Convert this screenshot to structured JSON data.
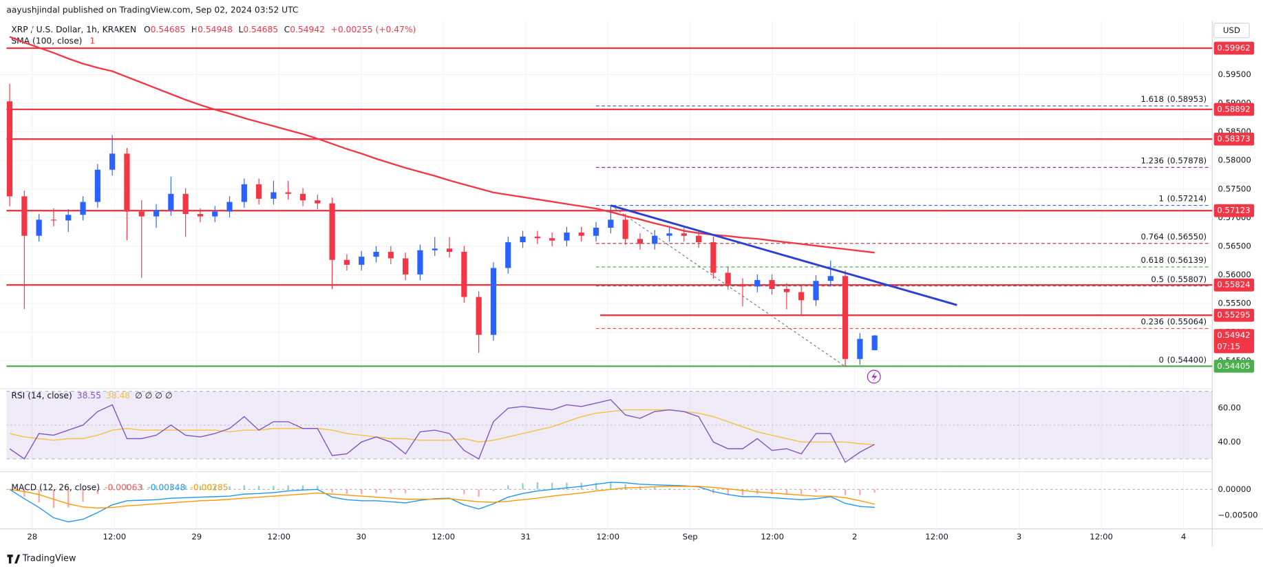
{
  "header": {
    "publisher": "aayushjindal published on TradingView.com, Sep 02, 2024 03:52 UTC",
    "symbol": "XRP / U.S. Dollar, 1h, KRAKEN",
    "ohlc_prefixes": [
      "O",
      "H",
      "L",
      "C"
    ],
    "change": "+0.00255 (+0.47%)",
    "currency": "USD",
    "countdown": "07:15",
    "footer": "TradingView"
  },
  "time_axis": [
    "28",
    "12:00",
    "29",
    "12:00",
    "30",
    "12:00",
    "31",
    "12:00",
    "Sep",
    "12:00",
    "2",
    "12:00",
    "3",
    "12:00",
    "4"
  ],
  "chart_data": [
    {
      "type": "candlestick",
      "up_color": "#2962ff",
      "down_color": "#f23645",
      "open": [
        0.59033,
        0.57373,
        0.56684,
        0.56965,
        0.56951,
        0.5705,
        0.57275,
        0.57838,
        0.58119,
        0.57106,
        0.57022,
        0.57134,
        0.57416,
        0.57064,
        0.57022,
        0.57106,
        0.57275,
        0.57584,
        0.57331,
        0.57444,
        0.57416,
        0.57303,
        0.5725,
        0.56262,
        0.56177,
        0.56318,
        0.56403,
        0.5629,
        0.56009,
        0.56431,
        0.5646,
        0.56403,
        0.55615,
        0.54953,
        0.56121,
        0.56571,
        0.5667,
        0.56642,
        0.566,
        0.5674,
        0.56684,
        0.56825,
        0.56965,
        0.56628,
        0.56543,
        0.56684,
        0.56726,
        0.56684,
        0.56571,
        0.56037,
        0.5584,
        0.55798,
        0.5591,
        0.55755,
        0.55699,
        0.55558,
        0.55896,
        0.5598,
        0.54531,
        0.54685
      ],
      "high": [
        0.59343,
        0.57473,
        0.57065,
        0.57165,
        0.5715,
        0.57375,
        0.57938,
        0.58443,
        0.58219,
        0.57306,
        0.57234,
        0.57716,
        0.57516,
        0.57164,
        0.57206,
        0.57375,
        0.57684,
        0.57684,
        0.57644,
        0.57644,
        0.57516,
        0.57403,
        0.5735,
        0.56362,
        0.56418,
        0.56503,
        0.56503,
        0.5639,
        0.56531,
        0.5666,
        0.5666,
        0.56503,
        0.55715,
        0.56221,
        0.56671,
        0.5677,
        0.5677,
        0.56742,
        0.5684,
        0.5684,
        0.56925,
        0.57214,
        0.57065,
        0.56728,
        0.56784,
        0.56826,
        0.56826,
        0.56784,
        0.56671,
        0.56137,
        0.5594,
        0.5601,
        0.5601,
        0.55855,
        0.55799,
        0.55996,
        0.5625,
        0.5608,
        0.54983,
        0.54948
      ],
      "low": [
        0.572,
        0.55404,
        0.56584,
        0.56851,
        0.56751,
        0.5695,
        0.57175,
        0.57738,
        0.56606,
        0.5595,
        0.56822,
        0.57034,
        0.56664,
        0.56922,
        0.56922,
        0.57006,
        0.57175,
        0.57231,
        0.57231,
        0.57316,
        0.57203,
        0.5715,
        0.5575,
        0.56077,
        0.56077,
        0.56218,
        0.5619,
        0.55909,
        0.55909,
        0.56331,
        0.56303,
        0.55515,
        0.5464,
        0.54853,
        0.56021,
        0.56471,
        0.56542,
        0.565,
        0.565,
        0.56584,
        0.56584,
        0.56725,
        0.56528,
        0.56443,
        0.56443,
        0.56584,
        0.56584,
        0.56471,
        0.55937,
        0.5574,
        0.5545,
        0.55698,
        0.55655,
        0.554,
        0.553,
        0.55458,
        0.55796,
        0.544,
        0.54431,
        0.54685
      ],
      "close": [
        0.57373,
        0.56684,
        0.56965,
        0.56951,
        0.5705,
        0.57275,
        0.57838,
        0.58119,
        0.57106,
        0.57022,
        0.57134,
        0.57416,
        0.57064,
        0.57022,
        0.57106,
        0.57275,
        0.57584,
        0.57331,
        0.57444,
        0.57416,
        0.57303,
        0.5725,
        0.56262,
        0.56177,
        0.56318,
        0.56403,
        0.5629,
        0.56009,
        0.56431,
        0.5646,
        0.56403,
        0.55615,
        0.54953,
        0.56121,
        0.56571,
        0.5667,
        0.56642,
        0.566,
        0.5674,
        0.56684,
        0.56825,
        0.56965,
        0.56628,
        0.56543,
        0.56684,
        0.56726,
        0.56684,
        0.56571,
        0.56037,
        0.5584,
        0.55798,
        0.5591,
        0.55755,
        0.55699,
        0.55558,
        0.55896,
        0.5598,
        0.54531,
        0.54883,
        0.54942
      ],
      "ylim": [
        0.54039,
        0.6044
      ],
      "yticks": [
        {
          "value": 0.545,
          "label": "0.54500"
        },
        {
          "value": 0.55,
          "label": "0.55000"
        },
        {
          "value": 0.555,
          "label": "0.55500"
        },
        {
          "value": 0.56,
          "label": "0.56000"
        },
        {
          "value": 0.565,
          "label": "0.56500"
        },
        {
          "value": 0.57,
          "label": "0.57000"
        },
        {
          "value": 0.575,
          "label": "0.57500"
        },
        {
          "value": 0.58,
          "label": "0.58000"
        },
        {
          "value": 0.585,
          "label": "0.58500"
        },
        {
          "value": 0.59,
          "label": "0.59000"
        },
        {
          "value": 0.595,
          "label": "0.59500"
        }
      ],
      "sma": {
        "label": "SMA (100, close)",
        "flag": "1",
        "color": "#f23645",
        "values": [
          0.6016,
          0.6006,
          0.5997,
          0.5988,
          0.5978,
          0.5969,
          0.5962,
          0.5956,
          0.5946,
          0.5936,
          0.5926,
          0.5916,
          0.5906,
          0.5897,
          0.5889,
          0.5882,
          0.5874,
          0.5867,
          0.586,
          0.5853,
          0.5846,
          0.5838,
          0.5829,
          0.582,
          0.5812,
          0.5803,
          0.5795,
          0.5787,
          0.578,
          0.5773,
          0.5765,
          0.5758,
          0.5751,
          0.5744,
          0.574,
          0.5736,
          0.5732,
          0.5728,
          0.5724,
          0.572,
          0.5716,
          0.571,
          0.5703,
          0.5697,
          0.569,
          0.5684,
          0.5677,
          0.5673,
          0.567,
          0.5668,
          0.5665,
          0.5663,
          0.566,
          0.5657,
          0.5654,
          0.5651,
          0.5648,
          0.5645,
          0.5642,
          0.5639
        ]
      },
      "levels": [
        {
          "value": 0.59962,
          "color": "#f23645"
        },
        {
          "value": 0.58892,
          "color": "#f23645"
        },
        {
          "value": 0.58373,
          "color": "#f23645"
        },
        {
          "value": 0.57123,
          "color": "#f23645"
        },
        {
          "value": 0.55824,
          "color": "#f23645"
        },
        {
          "value": 0.55295,
          "color": "#f23645"
        },
        {
          "value": 0.54405,
          "color": "#4caf50"
        }
      ],
      "fib": [
        {
          "ratio": 1.618,
          "price": {
            "value": 0.58953,
            "label": "(0.58953)"
          },
          "color": "#3f51b5"
        },
        {
          "ratio": 1.236,
          "price": {
            "value": 0.57878,
            "label": "(0.57878)"
          },
          "color": "#9c27b0"
        },
        {
          "ratio": 1,
          "price": {
            "value": 0.57214,
            "label": "(0.57214)"
          },
          "color": "#2962ff"
        },
        {
          "ratio": 0.764,
          "price": {
            "value": 0.5655,
            "label": "(0.56550)"
          },
          "color": "#b22833"
        },
        {
          "ratio": 0.618,
          "price": {
            "value": 0.56139,
            "label": "(0.56139)"
          },
          "color": "#4caf50"
        },
        {
          "ratio": 0.5,
          "price": {
            "value": 0.55807,
            "label": "(0.55807)"
          },
          "color": "#009688"
        },
        {
          "ratio": 0.236,
          "price": {
            "value": 0.55064,
            "label": "(0.55064)"
          },
          "color": "#f44336"
        },
        {
          "ratio": 0,
          "price": {
            "value": 0.544,
            "label": "(0.54400)"
          },
          "color": "#787b86"
        }
      ],
      "trendline": {
        "color": "#2a3fd6",
        "values": [
          0.57214,
          0.55474
        ]
      }
    },
    {
      "type": "line",
      "title": "RSI (14, close)",
      "extra": "∅ ∅ ∅ ∅",
      "band": [
        30,
        70
      ],
      "midline": 50,
      "band_color": "#7e57c2",
      "ylim": [
        24.8,
        70.5
      ],
      "yticks": [
        {
          "value": 40,
          "label": "40.00"
        },
        {
          "value": 60,
          "label": "60.00"
        }
      ],
      "series": [
        {
          "color": "#7e57c2",
          "values": [
            36,
            30,
            45,
            44,
            47,
            50,
            58,
            62,
            42,
            42,
            44,
            50,
            44,
            43,
            45,
            48,
            55,
            47,
            52,
            52,
            48,
            48,
            32,
            33,
            40,
            43,
            40,
            33,
            46,
            47,
            45,
            35,
            30,
            52,
            60,
            61,
            60,
            59,
            62,
            61,
            63,
            65,
            56,
            54,
            58,
            59,
            58,
            55,
            40,
            36,
            36,
            42,
            35,
            36,
            33,
            45,
            45,
            28,
            34,
            38.55
          ]
        },
        {
          "color": "#f5c242",
          "values": [
            45,
            43,
            42,
            41,
            42,
            42,
            44,
            47,
            48,
            47,
            47,
            47,
            47,
            47,
            47,
            46,
            47,
            47,
            48,
            48,
            48,
            48,
            47,
            45,
            44,
            43,
            42,
            42,
            41,
            41,
            41,
            42,
            40,
            41,
            43,
            45,
            47,
            49,
            52,
            55,
            57,
            58,
            59,
            59,
            59,
            59,
            58,
            57,
            55,
            52,
            49,
            46,
            44,
            42,
            40,
            40,
            40,
            40,
            39,
            38.48
          ]
        }
      ]
    },
    {
      "type": "macd",
      "title": "MACD (12, 26, close)",
      "ylim": [
        -0.00828,
        0.00266
      ],
      "yticks": [
        {
          "value": 0,
          "label": "0.00000"
        },
        {
          "value": -0.005,
          "label": "−0.00500"
        }
      ],
      "histogram": {
        "up_color": "#26a69a",
        "down_color": "#ff5252",
        "values": [
          0,
          -0.0014,
          -0.0025,
          -0.0036,
          -0.0035,
          -0.0024,
          -0.0009,
          0.0005,
          0.001,
          0.0009,
          0.0008,
          0.0009,
          0.0008,
          0.0007,
          0.0007,
          0.0006,
          0.0008,
          0.0007,
          0.0007,
          0.0008,
          0.0008,
          0.0007,
          -0.0006,
          -0.0009,
          -0.0009,
          -0.0007,
          -0.0007,
          -0.0007,
          -0.0002,
          0.0001,
          0.0001,
          -0.0009,
          -0.0014,
          -0.0003,
          0.0008,
          0.0012,
          0.0014,
          0.0013,
          0.0013,
          0.0013,
          0.0013,
          0.0014,
          0.001,
          0.0006,
          0.0004,
          0.0002,
          0.0001,
          -0.0001,
          -0.0008,
          -0.0011,
          -0.0012,
          -0.0009,
          -0.0009,
          -0.0009,
          -0.0009,
          -0.0005,
          -0.0001,
          -0.0011,
          -0.0011,
          -0.00063
        ]
      },
      "series": [
        {
          "color": "#2196f3",
          "values": [
            0,
            -0.0018,
            -0.0035,
            -0.0055,
            -0.0063,
            -0.0058,
            -0.0045,
            -0.003,
            -0.0022,
            -0.0021,
            -0.002,
            -0.0017,
            -0.0016,
            -0.0015,
            -0.0014,
            -0.0013,
            -0.0009,
            -0.0008,
            -0.0006,
            -0.0003,
            -0.0001,
            0,
            -0.0015,
            -0.002,
            -0.0022,
            -0.0022,
            -0.0024,
            -0.0026,
            -0.0021,
            -0.0018,
            -0.0017,
            -0.003,
            -0.0038,
            -0.0028,
            -0.0015,
            -0.0008,
            -0.0003,
            0,
            0.0003,
            0.0006,
            0.001,
            0.0014,
            0.0013,
            0.001,
            0.0009,
            0.0008,
            0.0007,
            0.0005,
            -0.0004,
            -0.001,
            -0.0014,
            -0.0014,
            -0.0016,
            -0.0018,
            -0.002,
            -0.0018,
            -0.0014,
            -0.0027,
            -0.0033,
            -0.00348
          ]
        },
        {
          "color": "#ff9800",
          "values": [
            0,
            -0.0004,
            -0.001,
            -0.0019,
            -0.0028,
            -0.0034,
            -0.0036,
            -0.0035,
            -0.0032,
            -0.003,
            -0.0028,
            -0.0026,
            -0.0024,
            -0.0022,
            -0.0021,
            -0.0019,
            -0.0017,
            -0.0015,
            -0.0013,
            -0.0011,
            -0.0009,
            -0.0007,
            -0.0009,
            -0.0011,
            -0.0013,
            -0.0015,
            -0.0017,
            -0.0019,
            -0.0019,
            -0.0019,
            -0.0018,
            -0.0021,
            -0.0024,
            -0.0025,
            -0.0023,
            -0.002,
            -0.0017,
            -0.0013,
            -0.001,
            -0.0007,
            -0.0003,
            0,
            0.0003,
            0.0004,
            0.0005,
            0.0006,
            0.0006,
            0.0006,
            0.0004,
            0.0001,
            -0.0002,
            -0.0005,
            -0.0007,
            -0.0009,
            -0.0011,
            -0.0013,
            -0.0013,
            -0.0016,
            -0.0022,
            -0.00285
          ]
        }
      ]
    }
  ]
}
